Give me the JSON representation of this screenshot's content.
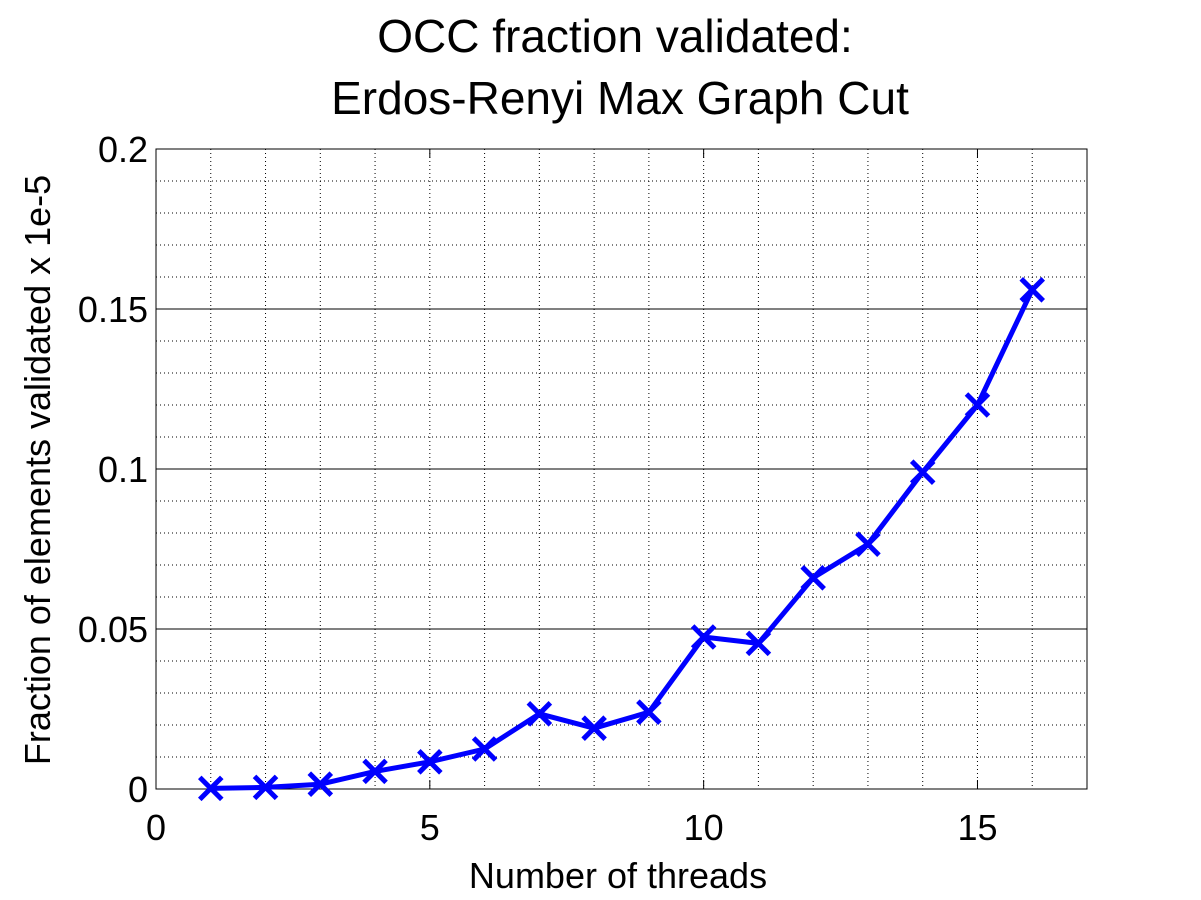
{
  "chart_data": {
    "type": "line",
    "title_lines": [
      "OCC fraction validated:",
      "Erdos-Renyi Max Graph Cut"
    ],
    "xlabel": "Number of threads",
    "ylabel": "Fraction of elements validated x 1e-5",
    "xlim": [
      0,
      17
    ],
    "ylim": [
      0,
      0.2
    ],
    "x_ticks": [
      0,
      5,
      10,
      15
    ],
    "x_tick_labels": [
      "0",
      "5",
      "10",
      "15"
    ],
    "y_ticks": [
      0,
      0.05,
      0.1,
      0.15,
      0.2
    ],
    "y_tick_labels": [
      "0",
      "0.05",
      "0.1",
      "0.15",
      "0.2"
    ],
    "grid": "major solid horizontal, minor dotted",
    "series": [
      {
        "marker": "x",
        "color": "#0000ff",
        "x": [
          1,
          2,
          3,
          4,
          5,
          6,
          7,
          8,
          9,
          10,
          11,
          12,
          13,
          14,
          15,
          16
        ],
        "y": [
          0.0002,
          0.0005,
          0.0015,
          0.0055,
          0.0085,
          0.0125,
          0.0235,
          0.019,
          0.024,
          0.0475,
          0.0455,
          0.066,
          0.0765,
          0.099,
          0.12,
          0.156
        ]
      }
    ]
  }
}
